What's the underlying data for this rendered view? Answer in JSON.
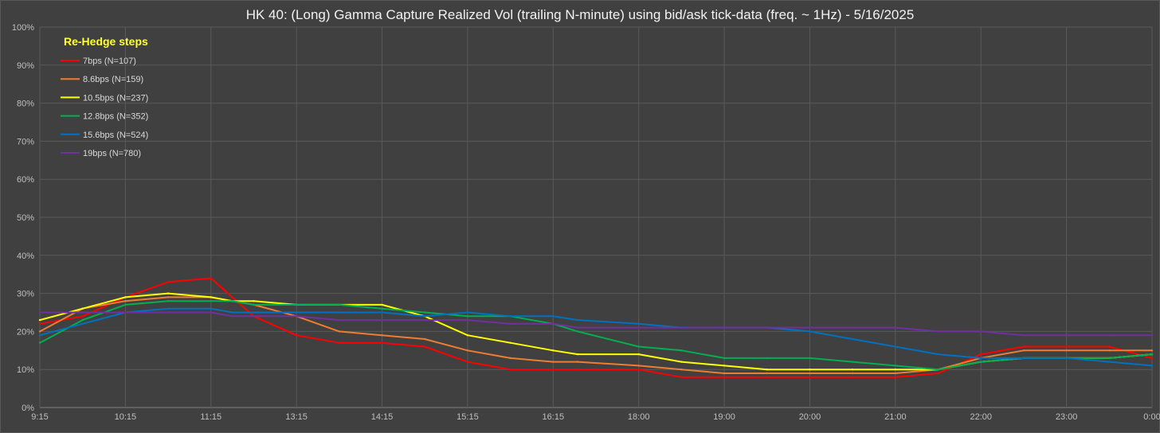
{
  "chart_data": {
    "type": "line",
    "title": "HK 40: (Long) Gamma Capture Realized Vol (trailing N-minute) using bid/ask tick-data (freq. ~ 1Hz) - 5/16/2025",
    "xlabel": "",
    "ylabel": "",
    "x_ticks": [
      "9:15",
      "10:15",
      "11:15",
      "13:15",
      "14:15",
      "15:15",
      "16:15",
      "18:00",
      "19:00",
      "20:00",
      "21:00",
      "22:00",
      "23:00",
      "0:00"
    ],
    "y_ticks": [
      "0%",
      "10%",
      "20%",
      "30%",
      "40%",
      "50%",
      "60%",
      "70%",
      "80%",
      "90%",
      "100%"
    ],
    "ylim": [
      0,
      100
    ],
    "grid": true,
    "legend": {
      "title": "Re-Hedge steps",
      "placement": "top-left"
    },
    "series": [
      {
        "name": "7bps  (N=107)",
        "color": "#ff0000",
        "x": [
          "9:15",
          "9:45",
          "10:15",
          "10:45",
          "11:15",
          "11:45",
          "12:15",
          "13:15",
          "13:45",
          "14:15",
          "14:45",
          "15:15",
          "15:45",
          "16:15",
          "16:45",
          "18:00",
          "18:30",
          "19:00",
          "19:30",
          "20:00",
          "20:30",
          "21:00",
          "21:30",
          "22:00",
          "22:30",
          "23:00",
          "23:30",
          "0:00"
        ],
        "values": [
          22,
          24,
          29,
          33,
          34,
          29,
          24,
          19,
          17,
          17,
          16,
          12,
          10,
          10,
          10,
          10,
          8,
          8,
          8,
          8,
          8,
          8,
          9,
          14,
          16,
          16,
          16,
          13
        ]
      },
      {
        "name": "8.6bps  (N=159)",
        "color": "#ed7d31",
        "x": [
          "9:15",
          "9:45",
          "10:15",
          "10:45",
          "11:15",
          "11:45",
          "12:15",
          "13:15",
          "13:45",
          "14:15",
          "14:45",
          "15:15",
          "15:45",
          "16:15",
          "16:45",
          "18:00",
          "18:30",
          "19:00",
          "19:30",
          "20:00",
          "20:30",
          "21:00",
          "21:30",
          "22:00",
          "22:30",
          "23:00",
          "23:30",
          "0:00"
        ],
        "values": [
          20,
          26,
          28,
          29,
          29,
          28,
          27,
          24,
          20,
          19,
          18,
          15,
          13,
          12,
          12,
          11,
          10,
          9,
          9,
          9,
          9,
          9,
          10,
          13,
          15,
          15,
          15,
          15
        ]
      },
      {
        "name": "10.5bps  (N=237)",
        "color": "#ffff00",
        "x": [
          "9:15",
          "9:45",
          "10:15",
          "10:45",
          "11:15",
          "11:45",
          "12:15",
          "13:15",
          "13:45",
          "14:15",
          "14:45",
          "15:15",
          "15:45",
          "16:15",
          "16:45",
          "18:00",
          "18:30",
          "19:00",
          "19:30",
          "20:00",
          "20:30",
          "21:00",
          "21:30",
          "22:00",
          "22:30",
          "23:00",
          "23:30",
          "0:00"
        ],
        "values": [
          23,
          26,
          29,
          30,
          29,
          28,
          28,
          27,
          27,
          27,
          24,
          19,
          17,
          15,
          14,
          14,
          12,
          11,
          10,
          10,
          10,
          10,
          10,
          12,
          13,
          13,
          13,
          14
        ]
      },
      {
        "name": "12.8bps  (N=352)",
        "color": "#00b050",
        "x": [
          "9:15",
          "9:45",
          "10:15",
          "10:45",
          "11:15",
          "11:45",
          "12:15",
          "13:15",
          "13:45",
          "14:15",
          "14:45",
          "15:15",
          "15:45",
          "16:15",
          "16:45",
          "18:00",
          "18:30",
          "19:00",
          "19:30",
          "20:00",
          "20:30",
          "21:00",
          "21:30",
          "22:00",
          "22:30",
          "23:00",
          "23:30",
          "0:00"
        ],
        "values": [
          17,
          23,
          27,
          28,
          28,
          28,
          27,
          27,
          27,
          26,
          25,
          24,
          24,
          22,
          20,
          16,
          15,
          13,
          13,
          13,
          12,
          11,
          10,
          12,
          13,
          13,
          13,
          14
        ]
      },
      {
        "name": "15.6bps  (N=524)",
        "color": "#0070c0",
        "x": [
          "9:15",
          "9:45",
          "10:15",
          "10:45",
          "11:15",
          "11:45",
          "12:15",
          "13:15",
          "13:45",
          "14:15",
          "14:45",
          "15:15",
          "15:45",
          "16:15",
          "16:45",
          "18:00",
          "18:30",
          "19:00",
          "19:30",
          "20:00",
          "20:30",
          "21:00",
          "21:30",
          "22:00",
          "22:30",
          "23:00",
          "23:30",
          "0:00"
        ],
        "values": [
          19,
          22,
          25,
          26,
          26,
          25,
          25,
          25,
          25,
          25,
          24,
          25,
          24,
          24,
          23,
          22,
          21,
          21,
          21,
          20,
          18,
          16,
          14,
          13,
          13,
          13,
          12,
          11
        ]
      },
      {
        "name": "19bps  (N=780)",
        "color": "#7030a0",
        "x": [
          "9:15",
          "9:45",
          "10:15",
          "10:45",
          "11:15",
          "11:45",
          "12:15",
          "13:15",
          "13:45",
          "14:15",
          "14:45",
          "15:15",
          "15:45",
          "16:15",
          "16:45",
          "18:00",
          "18:30",
          "19:00",
          "19:30",
          "20:00",
          "20:30",
          "21:00",
          "21:30",
          "22:00",
          "22:30",
          "23:00",
          "23:30",
          "0:00"
        ],
        "values": [
          25,
          25,
          25,
          25,
          25,
          24,
          24,
          24,
          23,
          23,
          23,
          23,
          22,
          22,
          21,
          21,
          21,
          21,
          21,
          21,
          21,
          21,
          20,
          20,
          19,
          19,
          19,
          19
        ]
      }
    ]
  }
}
